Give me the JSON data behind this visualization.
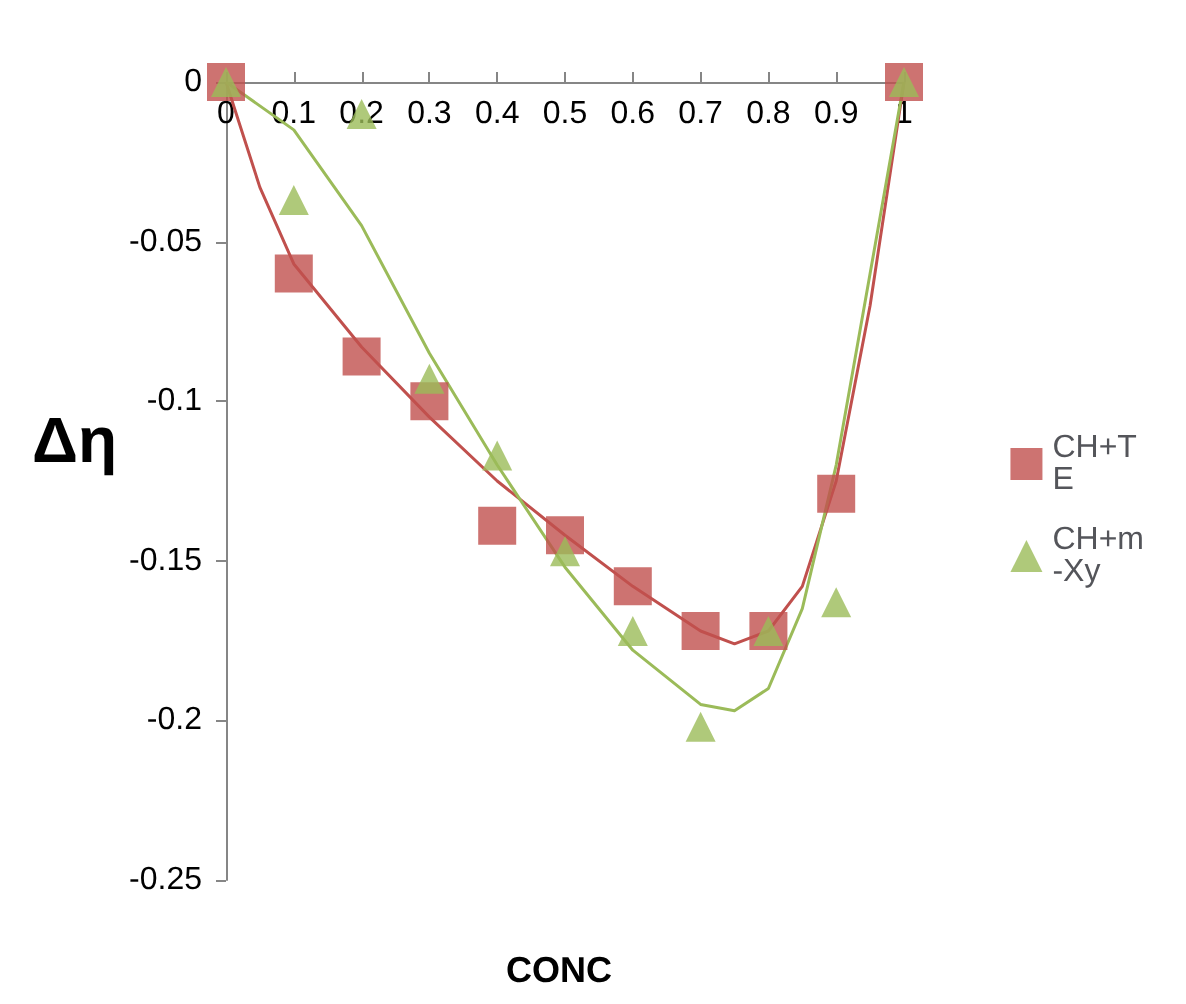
{
  "chart_data": {
    "type": "scatter",
    "xlabel": "CONC",
    "ylabel": "Δη",
    "x": [
      0,
      0.1,
      0.2,
      0.3,
      0.4,
      0.5,
      0.6,
      0.7,
      0.8,
      0.9,
      1
    ],
    "series": [
      {
        "name": "CH+TE",
        "color": "#c0504d",
        "marker": "square",
        "values": [
          0,
          -0.06,
          -0.086,
          -0.1,
          -0.139,
          -0.142,
          -0.158,
          -0.172,
          -0.172,
          -0.129,
          0
        ]
      },
      {
        "name": "CH+m-Xy",
        "color": "#9bbb59",
        "marker": "triangle",
        "values": [
          0,
          -0.037,
          -0.01,
          -0.093,
          -0.117,
          -0.147,
          -0.172,
          -0.202,
          -0.172,
          -0.163,
          0
        ]
      },
      {
        "type": "line",
        "color": "#c0504d",
        "marker": "none",
        "x": [
          0,
          0.05,
          0.1,
          0.2,
          0.3,
          0.4,
          0.5,
          0.6,
          0.7,
          0.75,
          0.8,
          0.85,
          0.9,
          0.95,
          1
        ],
        "values": [
          0,
          -0.033,
          -0.057,
          -0.083,
          -0.105,
          -0.125,
          -0.142,
          -0.158,
          -0.172,
          -0.176,
          -0.172,
          -0.158,
          -0.125,
          -0.07,
          0
        ]
      },
      {
        "type": "line",
        "color": "#9bbb59",
        "marker": "none",
        "x": [
          0,
          0.1,
          0.2,
          0.3,
          0.4,
          0.5,
          0.6,
          0.7,
          0.75,
          0.8,
          0.85,
          0.9,
          0.95,
          1
        ],
        "values": [
          0,
          -0.015,
          -0.045,
          -0.085,
          -0.12,
          -0.152,
          -0.178,
          -0.195,
          -0.197,
          -0.19,
          -0.165,
          -0.12,
          -0.06,
          0
        ]
      }
    ],
    "xlim": [
      0,
      1
    ],
    "xticks": [
      0,
      0.1,
      0.2,
      0.3,
      0.4,
      0.5,
      0.6,
      0.7,
      0.8,
      0.9,
      1
    ],
    "ylim": [
      -0.25,
      0
    ],
    "yticks": [
      -0.25,
      -0.2,
      -0.15,
      -0.1,
      -0.05,
      0
    ],
    "grid": false,
    "legend": "right"
  }
}
